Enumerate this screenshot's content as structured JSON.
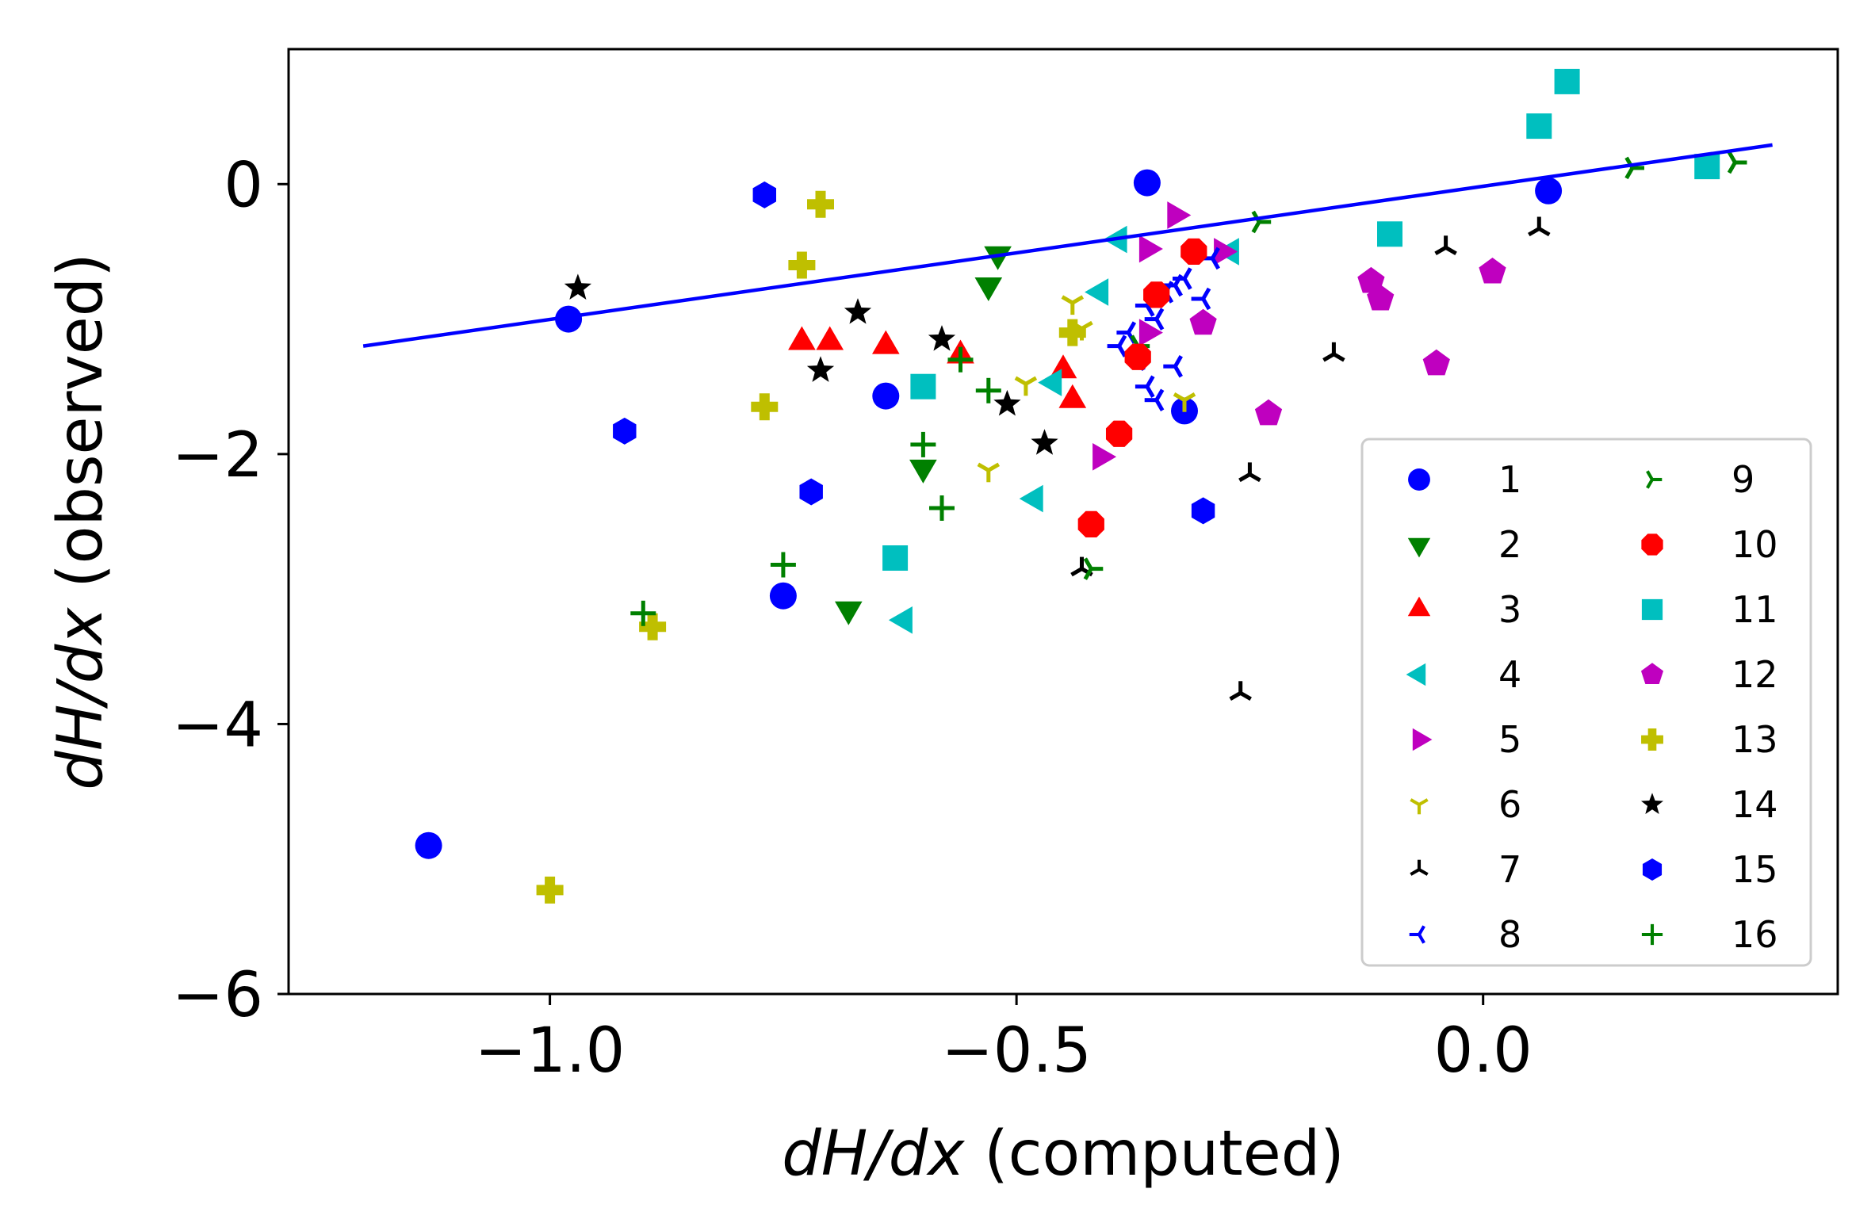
{
  "chart_data": {
    "type": "scatter",
    "xlabel": {
      "italic": "dH/dx",
      "plain": " (computed)"
    },
    "ylabel": {
      "italic": "dH/dx",
      "plain": " (observed)"
    },
    "xlim": [
      -1.28,
      0.38
    ],
    "ylim": [
      -6.0,
      1.0
    ],
    "x_ticks": [
      {
        "value": -1.0,
        "label": "−1.0"
      },
      {
        "value": -0.5,
        "label": "−0.5"
      },
      {
        "value": 0.0,
        "label": "0.0"
      }
    ],
    "y_ticks": [
      {
        "value": 0,
        "label": "0"
      },
      {
        "value": -2,
        "label": "−2"
      },
      {
        "value": -4,
        "label": "−4"
      },
      {
        "value": -6,
        "label": "−6"
      }
    ],
    "grid": false,
    "legend": {
      "placement": "lower-right",
      "columns": 2
    },
    "fit_line": {
      "color": "#0000ff",
      "x": [
        -1.2,
        0.31
      ],
      "y": [
        -1.2,
        0.29
      ]
    },
    "series": [
      {
        "name": "1",
        "marker": "circle",
        "color": "#0000ff",
        "points": [
          [
            -1.13,
            -4.9
          ],
          [
            -0.98,
            -1.0
          ],
          [
            -0.36,
            0.01
          ],
          [
            -0.64,
            -1.57
          ],
          [
            -0.75,
            -3.05
          ],
          [
            -0.32,
            -1.68
          ],
          [
            0.07,
            -0.05
          ]
        ]
      },
      {
        "name": "2",
        "marker": "triangle-down",
        "color": "#008000",
        "points": [
          [
            -0.52,
            -0.52
          ],
          [
            -0.53,
            -0.75
          ],
          [
            -0.6,
            -2.1
          ],
          [
            -0.68,
            -3.15
          ]
        ]
      },
      {
        "name": "3",
        "marker": "triangle-up",
        "color": "#ff0000",
        "points": [
          [
            -0.73,
            -1.17
          ],
          [
            -0.7,
            -1.17
          ],
          [
            -0.64,
            -1.2
          ],
          [
            -0.56,
            -1.27
          ],
          [
            -0.45,
            -1.38
          ],
          [
            -0.44,
            -1.6
          ]
        ]
      },
      {
        "name": "4",
        "marker": "triangle-left",
        "color": "#00bfbf",
        "points": [
          [
            -0.39,
            -0.41
          ],
          [
            -0.41,
            -0.8
          ],
          [
            -0.46,
            -1.47
          ],
          [
            -0.48,
            -2.33
          ],
          [
            -0.62,
            -3.23
          ],
          [
            -0.27,
            -0.5
          ]
        ]
      },
      {
        "name": "5",
        "marker": "triangle-right",
        "color": "#bf00bf",
        "points": [
          [
            -0.33,
            -0.23
          ],
          [
            -0.36,
            -0.48
          ],
          [
            -0.28,
            -0.5
          ],
          [
            -0.36,
            -1.1
          ],
          [
            -0.41,
            -2.02
          ]
        ]
      },
      {
        "name": "6",
        "marker": "tri-down",
        "color": "#bfbf00",
        "points": [
          [
            -0.44,
            -0.88
          ],
          [
            -0.43,
            -1.07
          ],
          [
            -0.49,
            -1.48
          ],
          [
            -0.53,
            -2.12
          ],
          [
            -0.32,
            -1.6
          ]
        ]
      },
      {
        "name": "7",
        "marker": "tri-up",
        "color": "#000000",
        "points": [
          [
            -0.04,
            -0.47
          ],
          [
            0.06,
            -0.33
          ],
          [
            -0.16,
            -1.26
          ],
          [
            -0.25,
            -2.15
          ],
          [
            -0.43,
            -2.85
          ],
          [
            -0.26,
            -3.77
          ]
        ]
      },
      {
        "name": "8",
        "marker": "tri-left",
        "color": "#0000ff",
        "points": [
          [
            -0.39,
            -1.2
          ],
          [
            -0.38,
            -1.1
          ],
          [
            -0.37,
            -1.3
          ],
          [
            -0.36,
            -0.9
          ],
          [
            -0.35,
            -1.0
          ],
          [
            -0.34,
            -0.8
          ],
          [
            -0.33,
            -0.75
          ],
          [
            -0.32,
            -0.7
          ],
          [
            -0.36,
            -1.5
          ],
          [
            -0.35,
            -1.6
          ],
          [
            -0.33,
            -1.35
          ],
          [
            -0.3,
            -0.85
          ],
          [
            -0.29,
            -0.55
          ]
        ]
      },
      {
        "name": "9",
        "marker": "tri-right",
        "color": "#008000",
        "points": [
          [
            0.16,
            0.12
          ],
          [
            0.27,
            0.16
          ],
          [
            -0.24,
            -0.28
          ],
          [
            -0.37,
            -1.2
          ],
          [
            -0.42,
            -2.85
          ]
        ]
      },
      {
        "name": "10",
        "marker": "octagon",
        "color": "#ff0000",
        "points": [
          [
            -0.31,
            -0.5
          ],
          [
            -0.35,
            -0.82
          ],
          [
            -0.37,
            -1.28
          ],
          [
            -0.39,
            -1.85
          ],
          [
            -0.42,
            -2.52
          ]
        ]
      },
      {
        "name": "11",
        "marker": "square",
        "color": "#00bfbf",
        "points": [
          [
            0.09,
            0.76
          ],
          [
            0.06,
            0.43
          ],
          [
            0.24,
            0.13
          ],
          [
            -0.1,
            -0.37
          ],
          [
            -0.6,
            -1.5
          ],
          [
            -0.63,
            -2.77
          ]
        ]
      },
      {
        "name": "12",
        "marker": "pentagon",
        "color": "#bf00bf",
        "points": [
          [
            0.01,
            -0.65
          ],
          [
            -0.12,
            -0.72
          ],
          [
            -0.11,
            -0.85
          ],
          [
            -0.3,
            -1.03
          ],
          [
            -0.05,
            -1.33
          ],
          [
            -0.23,
            -1.7
          ]
        ]
      },
      {
        "name": "13",
        "marker": "plus-filled",
        "color": "#bfbf00",
        "points": [
          [
            -0.71,
            -0.15
          ],
          [
            -0.73,
            -0.6
          ],
          [
            -0.44,
            -1.1
          ],
          [
            -0.77,
            -1.65
          ],
          [
            -0.89,
            -3.28
          ],
          [
            -1.0,
            -5.23
          ]
        ]
      },
      {
        "name": "14",
        "marker": "star",
        "color": "#000000",
        "points": [
          [
            -0.97,
            -0.77
          ],
          [
            -0.67,
            -0.95
          ],
          [
            -0.58,
            -1.15
          ],
          [
            -0.71,
            -1.38
          ],
          [
            -0.51,
            -1.63
          ],
          [
            -0.47,
            -1.92
          ]
        ]
      },
      {
        "name": "15",
        "marker": "hexagon",
        "color": "#0000ff",
        "points": [
          [
            -0.77,
            -0.08
          ],
          [
            -0.92,
            -1.83
          ],
          [
            -0.72,
            -2.28
          ],
          [
            -0.3,
            -2.42
          ]
        ]
      },
      {
        "name": "16",
        "marker": "plus",
        "color": "#008000",
        "points": [
          [
            -0.6,
            -1.93
          ],
          [
            -0.58,
            -2.4
          ],
          [
            -0.75,
            -2.82
          ],
          [
            -0.9,
            -3.18
          ],
          [
            -0.53,
            -1.53
          ],
          [
            -0.56,
            -1.3
          ]
        ]
      }
    ]
  }
}
